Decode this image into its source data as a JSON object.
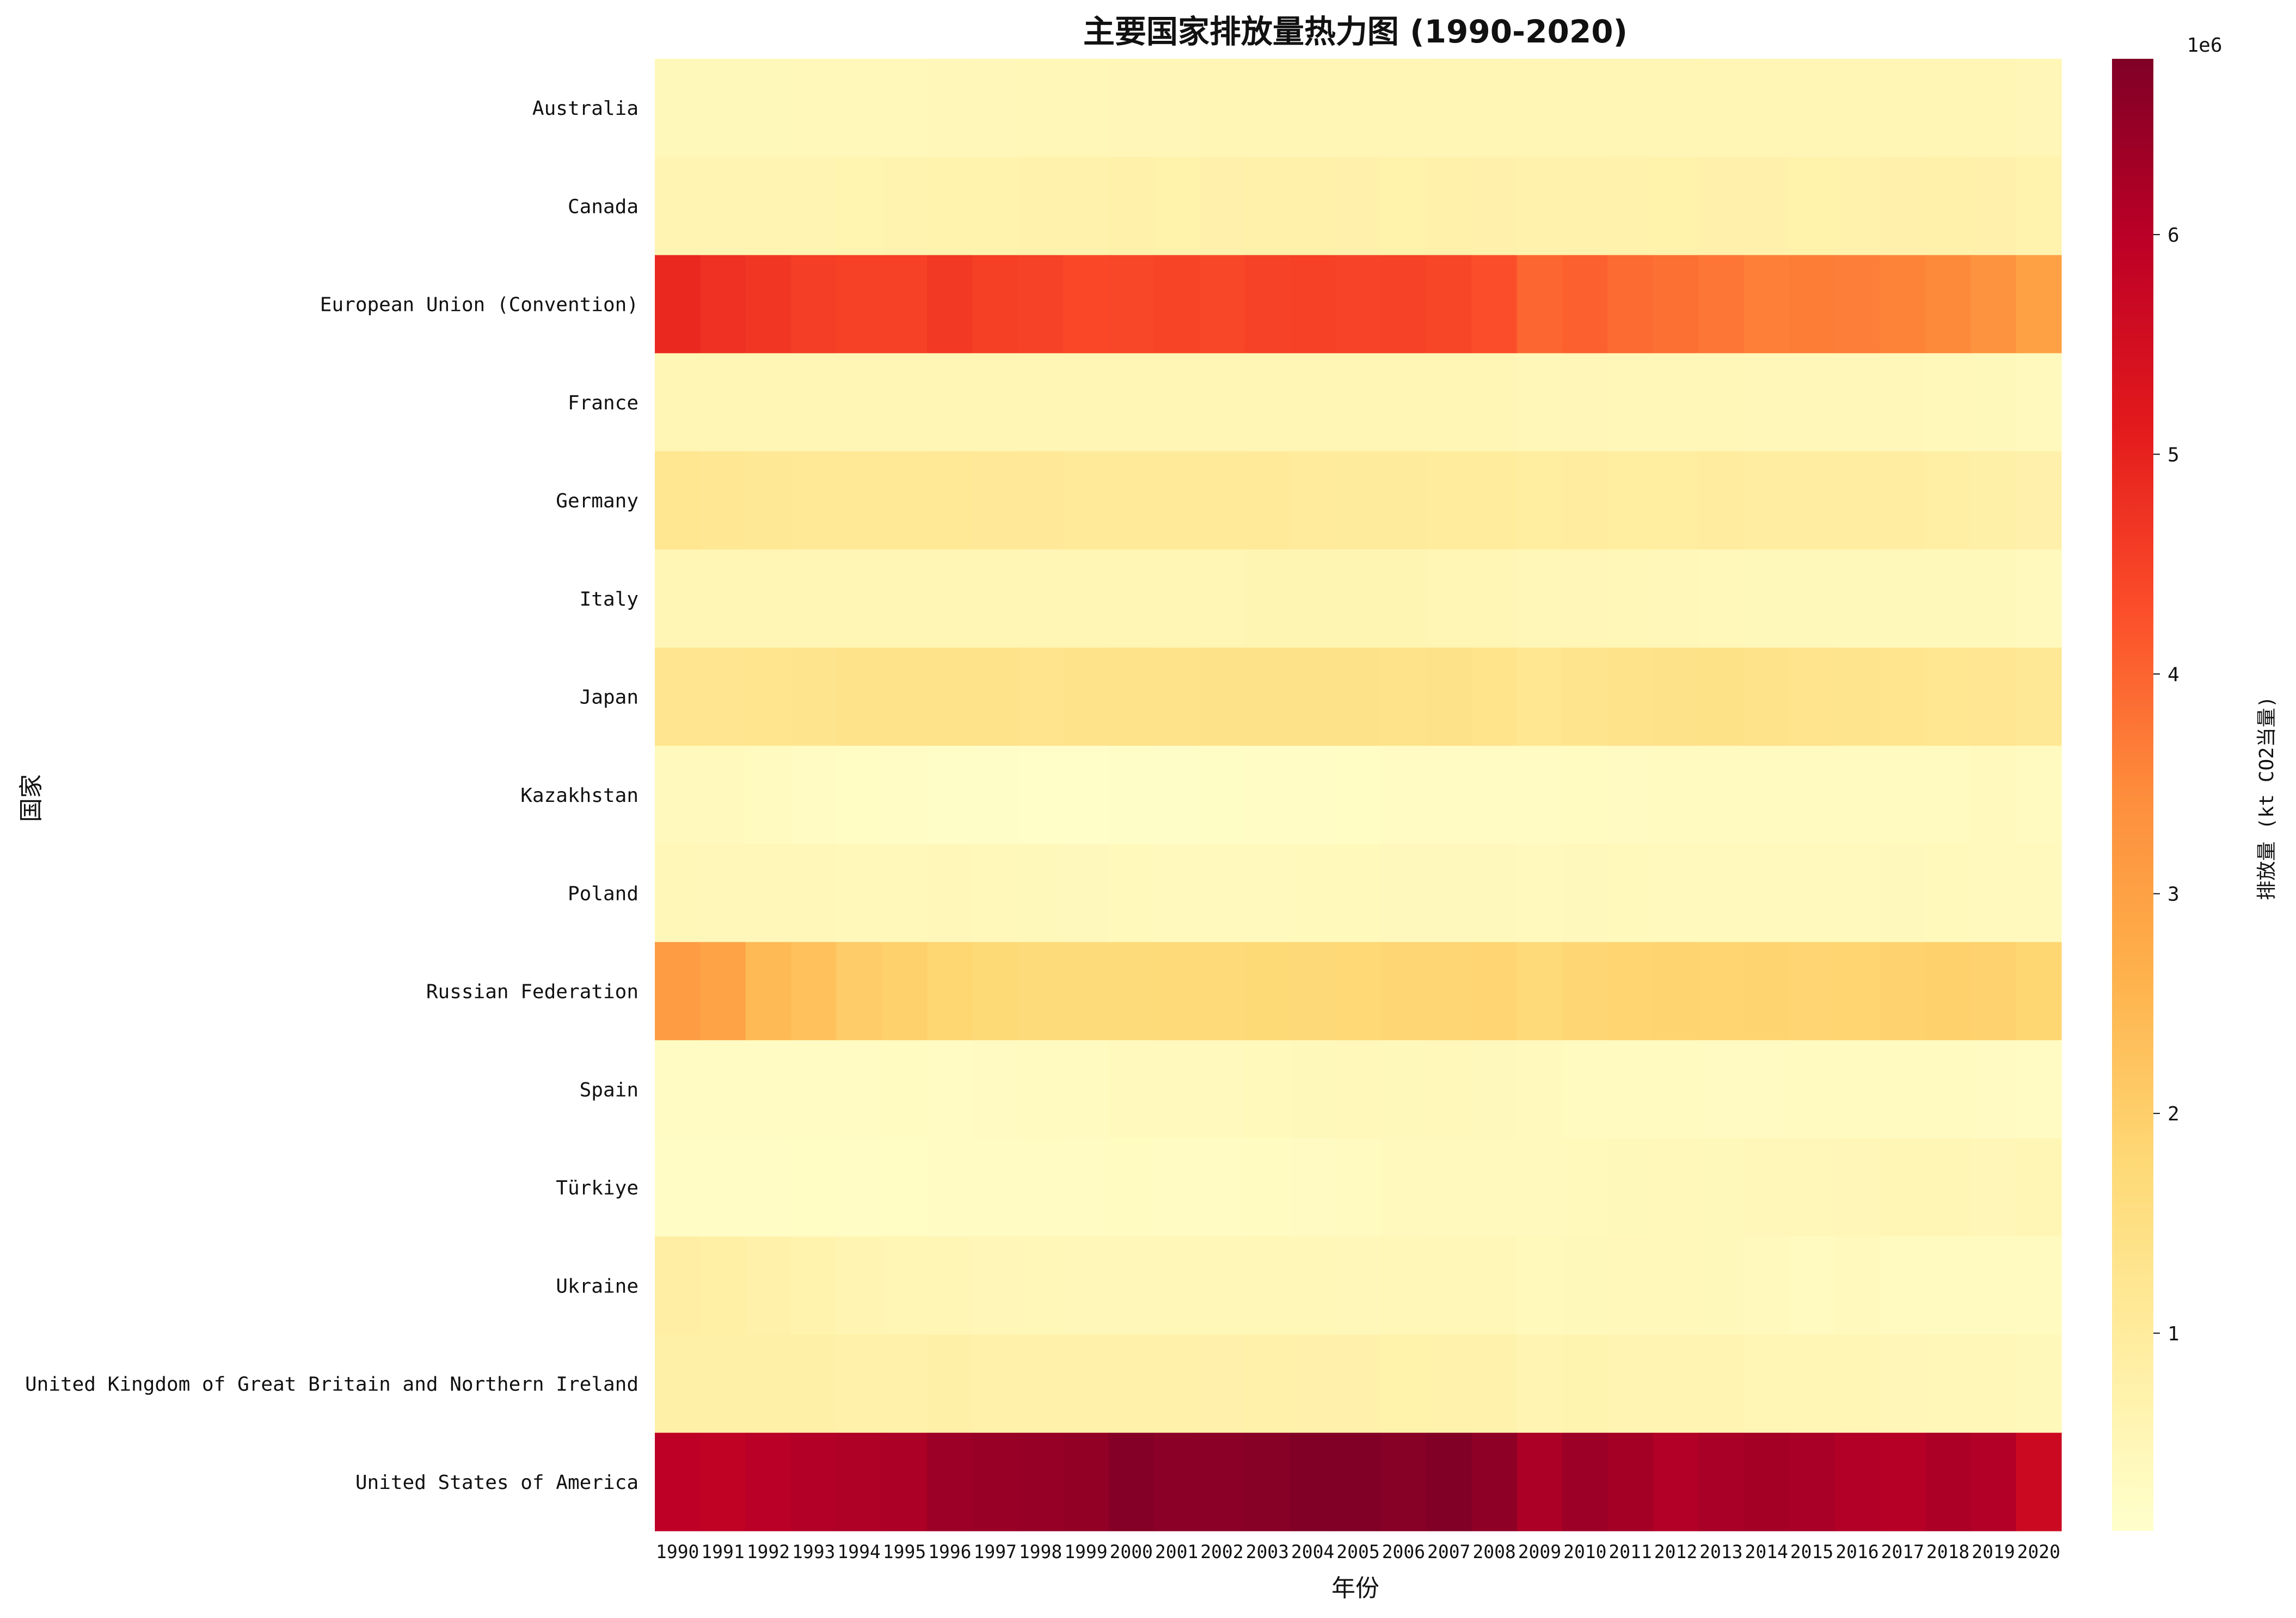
{
  "chart_data": {
    "type": "heatmap",
    "title": "主要国家排放量热力图 (1990-2020)",
    "xlabel": "年份",
    "ylabel": "国家",
    "colorbar_label": "排放量 (kt CO2当量)",
    "colorbar_exponent": "1e6",
    "colorbar_ticks": [
      "1",
      "2",
      "3",
      "4",
      "5",
      "6"
    ],
    "colorbar_tick_values": [
      1000000,
      2000000,
      3000000,
      4000000,
      5000000,
      6000000
    ],
    "colormap": "YlOrRd",
    "color_range": [
      100000,
      6800000
    ],
    "x": [
      "1990",
      "1991",
      "1992",
      "1993",
      "1994",
      "1995",
      "1996",
      "1997",
      "1998",
      "1999",
      "2000",
      "2001",
      "2002",
      "2003",
      "2004",
      "2005",
      "2006",
      "2007",
      "2008",
      "2009",
      "2010",
      "2011",
      "2012",
      "2013",
      "2014",
      "2015",
      "2016",
      "2017",
      "2018",
      "2019",
      "2020"
    ],
    "y": [
      "Australia",
      "Canada",
      "European Union (Convention)",
      "France",
      "Germany",
      "Italy",
      "Japan",
      "Kazakhstan",
      "Poland",
      "Russian Federation",
      "Spain",
      "Türkiye",
      "Ukraine",
      "United Kingdom of Great Britain and Northern Ireland",
      "United States of America"
    ],
    "z": [
      [
        420000,
        425000,
        430000,
        435000,
        440000,
        445000,
        455000,
        465000,
        480000,
        490000,
        500000,
        505000,
        510000,
        515000,
        525000,
        530000,
        540000,
        550000,
        560000,
        540000,
        545000,
        550000,
        545000,
        535000,
        525000,
        525000,
        530000,
        535000,
        540000,
        535000,
        505000
      ],
      [
        600000,
        590000,
        605000,
        615000,
        630000,
        645000,
        665000,
        680000,
        690000,
        710000,
        740000,
        725000,
        735000,
        750000,
        750000,
        735000,
        725000,
        750000,
        730000,
        690000,
        705000,
        710000,
        720000,
        730000,
        730000,
        725000,
        715000,
        730000,
        740000,
        730000,
        670000
      ],
      [
        4900000,
        4750000,
        4650000,
        4550000,
        4500000,
        4500000,
        4620000,
        4520000,
        4480000,
        4400000,
        4410000,
        4450000,
        4420000,
        4480000,
        4500000,
        4470000,
        4480000,
        4440000,
        4300000,
        3950000,
        4050000,
        3900000,
        3840000,
        3760000,
        3630000,
        3660000,
        3650000,
        3580000,
        3500000,
        3320000,
        3000000
      ],
      [
        550000,
        560000,
        550000,
        530000,
        520000,
        530000,
        545000,
        535000,
        555000,
        550000,
        550000,
        550000,
        545000,
        540000,
        540000,
        540000,
        530000,
        520000,
        515000,
        495000,
        500000,
        480000,
        480000,
        480000,
        450000,
        455000,
        450000,
        450000,
        440000,
        430000,
        395000
      ],
      [
        1250000,
        1200000,
        1150000,
        1140000,
        1120000,
        1110000,
        1130000,
        1100000,
        1085000,
        1050000,
        1050000,
        1065000,
        1050000,
        1050000,
        1040000,
        1010000,
        1020000,
        1000000,
        1000000,
        930000,
        960000,
        940000,
        945000,
        960000,
        920000,
        920000,
        920000,
        900000,
        860000,
        800000,
        730000
      ],
      [
        520000,
        525000,
        525000,
        520000,
        510000,
        535000,
        530000,
        535000,
        545000,
        550000,
        555000,
        560000,
        560000,
        575000,
        580000,
        575000,
        570000,
        560000,
        545000,
        490000,
        500000,
        490000,
        470000,
        435000,
        420000,
        430000,
        430000,
        425000,
        425000,
        420000,
        380000
      ],
      [
        1270000,
        1280000,
        1290000,
        1300000,
        1350000,
        1370000,
        1370000,
        1360000,
        1320000,
        1350000,
        1370000,
        1350000,
        1380000,
        1390000,
        1380000,
        1390000,
        1370000,
        1400000,
        1330000,
        1250000,
        1300000,
        1360000,
        1400000,
        1410000,
        1360000,
        1320000,
        1300000,
        1290000,
        1250000,
        1210000,
        1150000
      ],
      [
        380000,
        370000,
        340000,
        290000,
        250000,
        220000,
        200000,
        190000,
        180000,
        180000,
        190000,
        200000,
        210000,
        230000,
        240000,
        250000,
        265000,
        280000,
        290000,
        270000,
        300000,
        310000,
        320000,
        320000,
        330000,
        330000,
        330000,
        340000,
        350000,
        360000,
        350000
      ],
      [
        480000,
        470000,
        460000,
        450000,
        440000,
        440000,
        450000,
        440000,
        420000,
        410000,
        400000,
        395000,
        390000,
        395000,
        400000,
        400000,
        410000,
        410000,
        405000,
        385000,
        405000,
        400000,
        395000,
        390000,
        380000,
        385000,
        390000,
        405000,
        400000,
        380000,
        375000
      ],
      [
        3100000,
        2950000,
        2450000,
        2300000,
        2050000,
        1950000,
        1850000,
        1750000,
        1700000,
        1700000,
        1700000,
        1720000,
        1730000,
        1750000,
        1760000,
        1780000,
        1830000,
        1840000,
        1860000,
        1740000,
        1820000,
        1870000,
        1890000,
        1870000,
        1880000,
        1860000,
        1870000,
        1910000,
        1950000,
        1930000,
        1850000
      ],
      [
        290000,
        285000,
        295000,
        275000,
        290000,
        300000,
        290000,
        310000,
        320000,
        345000,
        370000,
        375000,
        390000,
        400000,
        420000,
        440000,
        430000,
        440000,
        410000,
        360000,
        350000,
        350000,
        345000,
        315000,
        315000,
        330000,
        320000,
        335000,
        330000,
        310000,
        270000
      ],
      [
        220000,
        225000,
        235000,
        245000,
        240000,
        250000,
        270000,
        280000,
        285000,
        280000,
        300000,
        280000,
        290000,
        305000,
        310000,
        335000,
        360000,
        390000,
        385000,
        390000,
        400000,
        420000,
        440000,
        430000,
        450000,
        470000,
        500000,
        525000,
        520000,
        505000,
        525000
      ],
      [
        880000,
        820000,
        750000,
        680000,
        600000,
        560000,
        530000,
        500000,
        480000,
        470000,
        470000,
        480000,
        475000,
        480000,
        475000,
        470000,
        480000,
        490000,
        480000,
        400000,
        420000,
        440000,
        440000,
        420000,
        380000,
        340000,
        360000,
        340000,
        345000,
        340000,
        325000
      ],
      [
        800000,
        810000,
        800000,
        780000,
        770000,
        770000,
        790000,
        760000,
        760000,
        750000,
        750000,
        760000,
        735000,
        740000,
        735000,
        730000,
        725000,
        710000,
        690000,
        620000,
        640000,
        600000,
        620000,
        600000,
        560000,
        540000,
        515000,
        500000,
        495000,
        480000,
        430000
      ],
      [
        5950000,
        5900000,
        6000000,
        6100000,
        6150000,
        6200000,
        6400000,
        6450000,
        6500000,
        6550000,
        6750000,
        6650000,
        6650000,
        6700000,
        6800000,
        6800000,
        6700000,
        6800000,
        6600000,
        6200000,
        6400000,
        6300000,
        6100000,
        6250000,
        6300000,
        6250000,
        6100000,
        6050000,
        6200000,
        6100000,
        5650000
      ]
    ]
  }
}
